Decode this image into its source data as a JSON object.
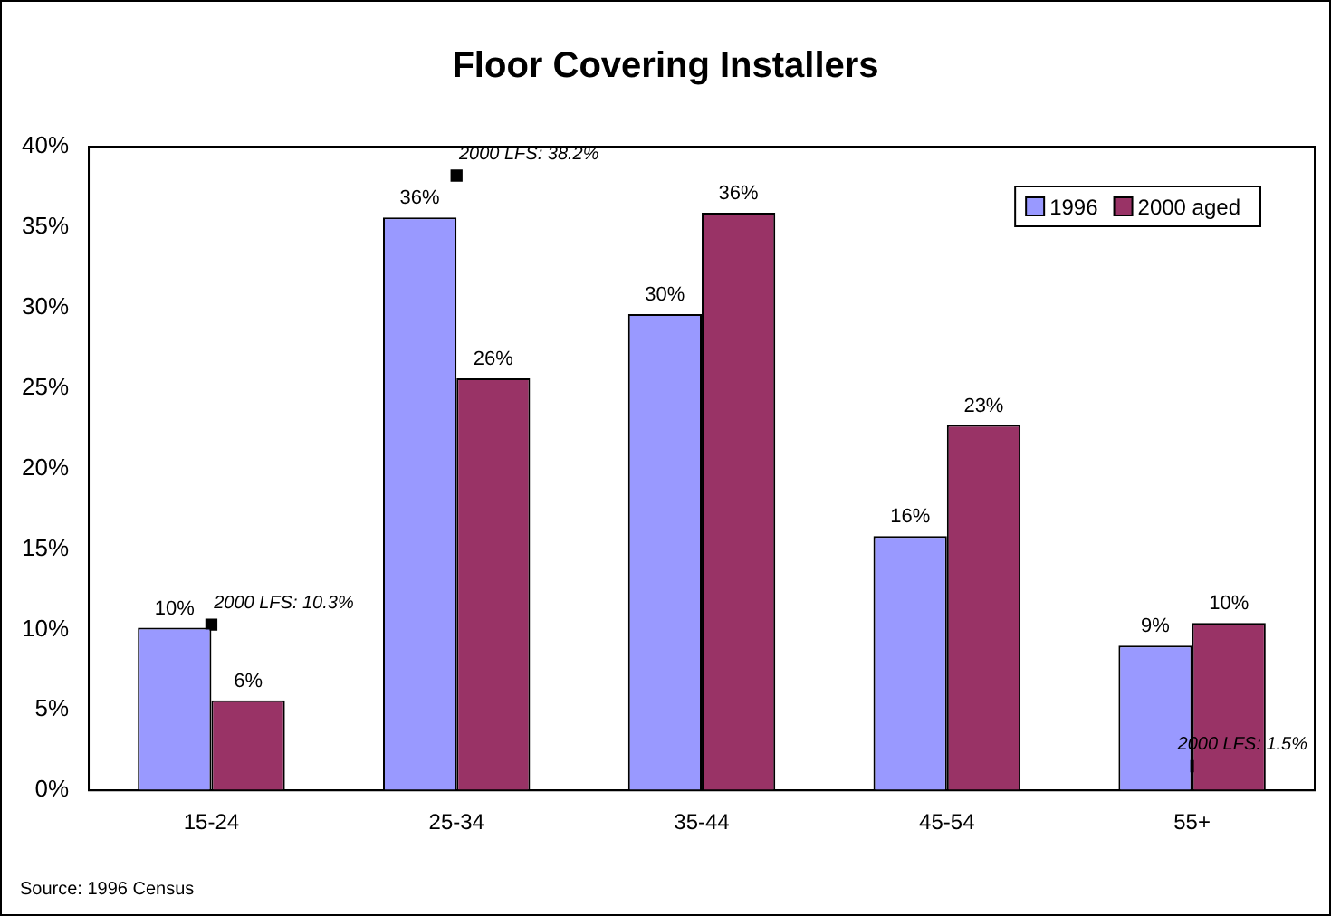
{
  "chart_data": {
    "type": "bar",
    "title": "Floor Covering Installers",
    "categories": [
      "15-24",
      "25-34",
      "35-44",
      "45-54",
      "55+"
    ],
    "series": [
      {
        "name": "1996",
        "color": "#9999ff",
        "values": [
          10.1,
          35.6,
          29.6,
          15.8,
          9.0
        ],
        "value_labels": [
          "10%",
          "36%",
          "30%",
          "16%",
          "9%"
        ]
      },
      {
        "name": "2000 aged",
        "color": "#993366",
        "values": [
          5.6,
          25.6,
          35.9,
          22.7,
          10.4
        ],
        "value_labels": [
          "6%",
          "26%",
          "36%",
          "23%",
          "10%"
        ]
      },
      {
        "type": "scatter",
        "color": "#000000",
        "marker": "square",
        "x": [
          "15-24",
          "25-34",
          "55+"
        ],
        "values": [
          10.3,
          38.2,
          1.5
        ],
        "value_labels": [
          "2000 LFS: 10.3%",
          "2000 LFS: 38.2%",
          "2000 LFS: 1.5%"
        ]
      }
    ],
    "ylim": [
      0,
      40
    ],
    "yticks": [
      {
        "value": 0,
        "label": "0%"
      },
      {
        "value": 5,
        "label": "5%"
      },
      {
        "value": 10,
        "label": "10%"
      },
      {
        "value": 15,
        "label": "15%"
      },
      {
        "value": 20,
        "label": "20%"
      },
      {
        "value": 25,
        "label": "25%"
      },
      {
        "value": 30,
        "label": "30%"
      },
      {
        "value": 35,
        "label": "35%"
      },
      {
        "value": 40,
        "label": "40%"
      }
    ],
    "grid": false,
    "legend": "top right",
    "annotations": [
      "Source: 1996 Census"
    ]
  }
}
